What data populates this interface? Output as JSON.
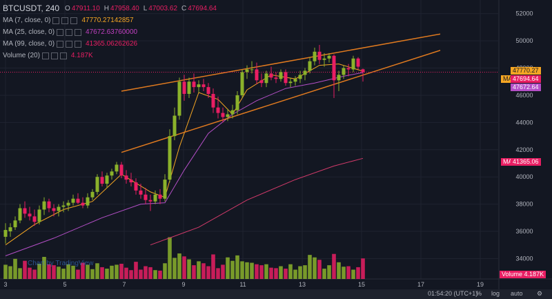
{
  "symbol": "BTCUSDT, 240",
  "ohlc": {
    "open": {
      "label": "O",
      "value": "47911.10"
    },
    "high": {
      "label": "H",
      "value": "47958.40"
    },
    "low": {
      "label": "L",
      "value": "47003.62"
    },
    "close": {
      "label": "C",
      "value": "47694.64"
    }
  },
  "indicators": [
    {
      "label": "MA (7, close, 0)",
      "value": "47770.27142857",
      "color": "#f5a623"
    },
    {
      "label": "MA (25, close, 0)",
      "value": "47672.63760000",
      "color": "#c040c0"
    },
    {
      "label": "MA (99, close, 0)",
      "value": "41365.06262626",
      "color": "#e91e63"
    },
    {
      "label": "Volume (20)",
      "value": "4.187K",
      "color": "#e91e63"
    }
  ],
  "price_tags": {
    "ma7": "47770.27",
    "ma_label": "MA",
    "last": "47694.64",
    "ma25": "47672.64",
    "ma99": "41365.06",
    "ma99_label": "MA"
  },
  "volume_tag": {
    "label": "Volume",
    "value": "4.187K"
  },
  "watermark": "Chart by TradingView",
  "bottom_bar": {
    "time": "01:54:20 (UTC+1)",
    "percent": "%",
    "log": "log",
    "auto": "auto"
  },
  "colors": {
    "up": "#8bb22b",
    "down": "#e91e63",
    "ma7": "#f5a623",
    "ma25": "#b44fc7",
    "ma99": "#d23a6a",
    "trend": "#e07a1f",
    "grid": "#1f2330",
    "text": "#b2b5be"
  },
  "chart_data": {
    "type": "candlestick",
    "x_ticks": [
      "3",
      "5",
      "7",
      "9",
      "11",
      "13",
      "15",
      "17",
      "19"
    ],
    "y_ticks": [
      34000,
      36000,
      38000,
      40000,
      42000,
      44000,
      46000,
      48000,
      50000,
      52000
    ],
    "ylim": [
      32500,
      53000
    ],
    "candles": [
      {
        "o": 35600,
        "h": 36600,
        "l": 35100,
        "c": 36100
      },
      {
        "o": 36000,
        "h": 36600,
        "l": 35600,
        "c": 36300
      },
      {
        "o": 36300,
        "h": 37100,
        "l": 36100,
        "c": 36800
      },
      {
        "o": 36800,
        "h": 38000,
        "l": 36600,
        "c": 37700
      },
      {
        "o": 37700,
        "h": 38200,
        "l": 37000,
        "c": 37300
      },
      {
        "o": 37300,
        "h": 37800,
        "l": 36800,
        "c": 37100
      },
      {
        "o": 37100,
        "h": 37600,
        "l": 36400,
        "c": 36700
      },
      {
        "o": 36700,
        "h": 37900,
        "l": 36500,
        "c": 37600
      },
      {
        "o": 37600,
        "h": 38500,
        "l": 37200,
        "c": 38200
      },
      {
        "o": 38200,
        "h": 38400,
        "l": 37400,
        "c": 37700
      },
      {
        "o": 37700,
        "h": 38000,
        "l": 37100,
        "c": 37500
      },
      {
        "o": 37500,
        "h": 38000,
        "l": 37100,
        "c": 37800
      },
      {
        "o": 37800,
        "h": 38200,
        "l": 37400,
        "c": 37900
      },
      {
        "o": 37900,
        "h": 38300,
        "l": 37500,
        "c": 38100
      },
      {
        "o": 38100,
        "h": 38700,
        "l": 37900,
        "c": 38400
      },
      {
        "o": 38400,
        "h": 38800,
        "l": 38000,
        "c": 38100
      },
      {
        "o": 38100,
        "h": 38500,
        "l": 37700,
        "c": 37900
      },
      {
        "o": 37900,
        "h": 38800,
        "l": 37700,
        "c": 38500
      },
      {
        "o": 38500,
        "h": 39100,
        "l": 38300,
        "c": 38900
      },
      {
        "o": 38900,
        "h": 40200,
        "l": 38700,
        "c": 40000
      },
      {
        "o": 40000,
        "h": 40400,
        "l": 39300,
        "c": 39500
      },
      {
        "o": 39500,
        "h": 40300,
        "l": 39200,
        "c": 40100
      },
      {
        "o": 40100,
        "h": 40600,
        "l": 39800,
        "c": 40400
      },
      {
        "o": 40400,
        "h": 41100,
        "l": 40200,
        "c": 40900
      },
      {
        "o": 40900,
        "h": 41100,
        "l": 39900,
        "c": 40100
      },
      {
        "o": 40100,
        "h": 40500,
        "l": 39500,
        "c": 39800
      },
      {
        "o": 39800,
        "h": 40300,
        "l": 39300,
        "c": 39600
      },
      {
        "o": 39600,
        "h": 39900,
        "l": 38700,
        "c": 39000
      },
      {
        "o": 39000,
        "h": 39500,
        "l": 38400,
        "c": 38700
      },
      {
        "o": 38700,
        "h": 39200,
        "l": 38000,
        "c": 38300
      },
      {
        "o": 38300,
        "h": 38700,
        "l": 37500,
        "c": 38200
      },
      {
        "o": 38200,
        "h": 39000,
        "l": 38000,
        "c": 38700
      },
      {
        "o": 38700,
        "h": 39100,
        "l": 38000,
        "c": 38400
      },
      {
        "o": 38400,
        "h": 40200,
        "l": 38200,
        "c": 39800
      },
      {
        "o": 39800,
        "h": 43500,
        "l": 39600,
        "c": 43000
      },
      {
        "o": 43000,
        "h": 45100,
        "l": 42700,
        "c": 44500
      },
      {
        "o": 44500,
        "h": 47300,
        "l": 44200,
        "c": 47000
      },
      {
        "o": 47000,
        "h": 47500,
        "l": 45600,
        "c": 46100
      },
      {
        "o": 46100,
        "h": 47300,
        "l": 45800,
        "c": 47000
      },
      {
        "o": 47000,
        "h": 47600,
        "l": 46200,
        "c": 46600
      },
      {
        "o": 46600,
        "h": 47100,
        "l": 46200,
        "c": 46800
      },
      {
        "o": 46800,
        "h": 47200,
        "l": 46300,
        "c": 46600
      },
      {
        "o": 46600,
        "h": 46900,
        "l": 45800,
        "c": 46100
      },
      {
        "o": 46100,
        "h": 46500,
        "l": 44700,
        "c": 45100
      },
      {
        "o": 45100,
        "h": 45900,
        "l": 44300,
        "c": 44700
      },
      {
        "o": 44700,
        "h": 45100,
        "l": 44000,
        "c": 44400
      },
      {
        "o": 44400,
        "h": 45000,
        "l": 44100,
        "c": 44600
      },
      {
        "o": 44600,
        "h": 45300,
        "l": 44300,
        "c": 44900
      },
      {
        "o": 44900,
        "h": 46300,
        "l": 44600,
        "c": 46000
      },
      {
        "o": 46000,
        "h": 47900,
        "l": 45800,
        "c": 47700
      },
      {
        "o": 47700,
        "h": 48200,
        "l": 47200,
        "c": 47900
      },
      {
        "o": 47900,
        "h": 48500,
        "l": 47600,
        "c": 47900
      },
      {
        "o": 47900,
        "h": 48400,
        "l": 46800,
        "c": 47100
      },
      {
        "o": 47100,
        "h": 47600,
        "l": 46600,
        "c": 46900
      },
      {
        "o": 46900,
        "h": 47800,
        "l": 46600,
        "c": 47600
      },
      {
        "o": 47600,
        "h": 48100,
        "l": 47100,
        "c": 47300
      },
      {
        "o": 47300,
        "h": 47700,
        "l": 46900,
        "c": 47200
      },
      {
        "o": 47200,
        "h": 47900,
        "l": 47000,
        "c": 47700
      },
      {
        "o": 47700,
        "h": 47900,
        "l": 46700,
        "c": 46900
      },
      {
        "o": 46900,
        "h": 47300,
        "l": 46600,
        "c": 47000
      },
      {
        "o": 47000,
        "h": 47400,
        "l": 46700,
        "c": 47200
      },
      {
        "o": 47200,
        "h": 47800,
        "l": 46900,
        "c": 47500
      },
      {
        "o": 47500,
        "h": 48000,
        "l": 47100,
        "c": 47800
      },
      {
        "o": 47800,
        "h": 48800,
        "l": 47600,
        "c": 48500
      },
      {
        "o": 48500,
        "h": 49500,
        "l": 48200,
        "c": 49200
      },
      {
        "o": 49200,
        "h": 49700,
        "l": 48300,
        "c": 48600
      },
      {
        "o": 48600,
        "h": 49100,
        "l": 48100,
        "c": 48700
      },
      {
        "o": 48700,
        "h": 49100,
        "l": 48400,
        "c": 48900
      },
      {
        "o": 48900,
        "h": 49000,
        "l": 45800,
        "c": 47100
      },
      {
        "o": 47100,
        "h": 47800,
        "l": 46300,
        "c": 47500
      },
      {
        "o": 47500,
        "h": 48200,
        "l": 47200,
        "c": 48000
      },
      {
        "o": 48000,
        "h": 48300,
        "l": 47400,
        "c": 47900
      },
      {
        "o": 47900,
        "h": 48900,
        "l": 47700,
        "c": 48700
      },
      {
        "o": 48700,
        "h": 48800,
        "l": 47900,
        "c": 48100
      },
      {
        "o": 47911.1,
        "h": 47958.4,
        "l": 47003.62,
        "c": 47694.64
      }
    ],
    "volumes": [
      2.9,
      2.6,
      4.1,
      2.2,
      3.7,
      2.3,
      1.9,
      3.1,
      4.5,
      3.0,
      2.8,
      2.5,
      2.1,
      3.0,
      2.7,
      1.9,
      3.3,
      2.9,
      2.0,
      3.2,
      2.4,
      2.1,
      2.7,
      2.9,
      3.1,
      2.3,
      1.8,
      3.5,
      1.9,
      2.6,
      2.4,
      1.8,
      1.7,
      3.2,
      8.5,
      4.3,
      5.2,
      4.6,
      4.0,
      2.8,
      3.6,
      3.2,
      2.6,
      5.0,
      2.2,
      2.9,
      4.4,
      3.7,
      4.8,
      3.6,
      3.4,
      3.3,
      3.0,
      2.8,
      3.0,
      2.3,
      2.2,
      2.6,
      2.1,
      3.0,
      1.9,
      2.6,
      2.8,
      4.9,
      4.4,
      3.9,
      2.1,
      2.8,
      5.1,
      3.4,
      2.5,
      2.6,
      1.9,
      2.4,
      4.187
    ],
    "vol_max": 9,
    "ma7": [
      [
        0,
        35000
      ],
      [
        6,
        36500
      ],
      [
        12,
        37600
      ],
      [
        18,
        38200
      ],
      [
        24,
        40200
      ],
      [
        30,
        38900
      ],
      [
        33,
        38500
      ],
      [
        36,
        42200
      ],
      [
        40,
        46200
      ],
      [
        44,
        45700
      ],
      [
        47,
        44600
      ],
      [
        50,
        46400
      ],
      [
        55,
        47500
      ],
      [
        60,
        47200
      ],
      [
        65,
        48200
      ],
      [
        69,
        48300
      ],
      [
        74,
        47770
      ]
    ],
    "ma25": [
      [
        0,
        34200
      ],
      [
        10,
        35500
      ],
      [
        20,
        37000
      ],
      [
        28,
        38000
      ],
      [
        33,
        38100
      ],
      [
        37,
        40500
      ],
      [
        42,
        43200
      ],
      [
        47,
        44600
      ],
      [
        52,
        45600
      ],
      [
        58,
        46500
      ],
      [
        64,
        46900
      ],
      [
        70,
        47400
      ],
      [
        74,
        47672
      ]
    ],
    "ma99": [
      [
        30,
        35000
      ],
      [
        40,
        36300
      ],
      [
        50,
        38300
      ],
      [
        60,
        39800
      ],
      [
        68,
        40800
      ],
      [
        74,
        41365
      ]
    ],
    "trend_upper": [
      [
        24,
        46300
      ],
      [
        90,
        50500
      ]
    ],
    "trend_lower": [
      [
        24,
        41800
      ],
      [
        90,
        49300
      ]
    ]
  }
}
